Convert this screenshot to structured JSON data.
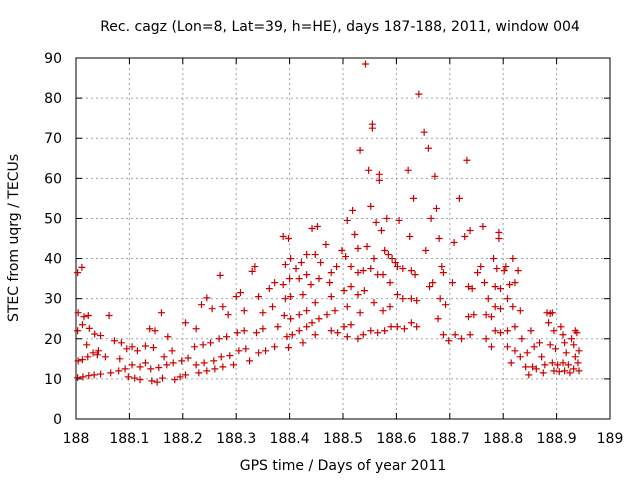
{
  "chart_data": {
    "type": "scatter",
    "title": "Rec. cagz (Lon=8, Lat=39, h=HE), days 187-188, 2011, window 004",
    "xlabel": "GPS time / Days of year 2011",
    "ylabel": "STEC from uqrg / TECUs",
    "xlim": [
      188,
      189
    ],
    "ylim": [
      0,
      90
    ],
    "x_ticks": [
      188,
      188.1,
      188.2,
      188.3,
      188.4,
      188.5,
      188.6,
      188.7,
      188.8,
      188.9,
      189
    ],
    "x_tick_labels": [
      "188",
      "188.1",
      "188.2",
      "188.3",
      "188.4",
      "188.5",
      "188.6",
      "188.7",
      "188.8",
      "188.9",
      "189"
    ],
    "y_ticks": [
      0,
      10,
      20,
      30,
      40,
      50,
      60,
      70,
      80,
      90
    ],
    "y_tick_labels": [
      "0",
      "10",
      "20",
      "30",
      "40",
      "50",
      "60",
      "70",
      "80",
      "90"
    ],
    "grid": true,
    "marker": "plus",
    "marker_color": "#cc0000",
    "points": [
      [
        188.003,
        36.5
      ],
      [
        188.011,
        37.8
      ],
      [
        188.004,
        26.5
      ],
      [
        188.015,
        25.5
      ],
      [
        188.023,
        25.8
      ],
      [
        188.003,
        22
      ],
      [
        188.012,
        23.5
      ],
      [
        188.025,
        22.6
      ],
      [
        188.035,
        21.2
      ],
      [
        188.046,
        20.8
      ],
      [
        188.004,
        14.5
      ],
      [
        188.012,
        14.8
      ],
      [
        188.022,
        15.5
      ],
      [
        188.032,
        16.5
      ],
      [
        188.042,
        17
      ],
      [
        188.003,
        10.3
      ],
      [
        188.013,
        10.5
      ],
      [
        188.024,
        10.8
      ],
      [
        188.034,
        11
      ],
      [
        188.046,
        11.2
      ],
      [
        188.02,
        18.5
      ],
      [
        188.04,
        16
      ],
      [
        188.055,
        15.5
      ],
      [
        188.062,
        25.8
      ],
      [
        188.072,
        19.5
      ],
      [
        188.085,
        19
      ],
      [
        188.065,
        11.5
      ],
      [
        188.08,
        12
      ],
      [
        188.092,
        12.5
      ],
      [
        188.082,
        15
      ],
      [
        188.095,
        17.5
      ],
      [
        188.105,
        18
      ],
      [
        188.098,
        10.5
      ],
      [
        188.11,
        10.2
      ],
      [
        188.12,
        9.8
      ],
      [
        188.105,
        13.5
      ],
      [
        188.12,
        13
      ],
      [
        188.13,
        14
      ],
      [
        188.115,
        17
      ],
      [
        188.13,
        18.2
      ],
      [
        188.142,
        9.5
      ],
      [
        188.152,
        9.2
      ],
      [
        188.162,
        10.2
      ],
      [
        188.14,
        12.5
      ],
      [
        188.155,
        12.8
      ],
      [
        188.17,
        13.5
      ],
      [
        188.138,
        22.5
      ],
      [
        188.148,
        22
      ],
      [
        188.16,
        26.5
      ],
      [
        188.172,
        20.5
      ],
      [
        188.145,
        17.8
      ],
      [
        188.165,
        15.5
      ],
      [
        188.18,
        17
      ],
      [
        188.185,
        9.8
      ],
      [
        188.195,
        10.5
      ],
      [
        188.205,
        11
      ],
      [
        188.182,
        14
      ],
      [
        188.198,
        14.5
      ],
      [
        188.21,
        15.2
      ],
      [
        188.205,
        24
      ],
      [
        188.225,
        22.5
      ],
      [
        188.235,
        28.5
      ],
      [
        188.245,
        30.2
      ],
      [
        188.255,
        27.5
      ],
      [
        188.222,
        18
      ],
      [
        188.238,
        18.5
      ],
      [
        188.252,
        19
      ],
      [
        188.23,
        11.5
      ],
      [
        188.245,
        12
      ],
      [
        188.26,
        12.5
      ],
      [
        188.225,
        13.5
      ],
      [
        188.24,
        14
      ],
      [
        188.258,
        14.5
      ],
      [
        188.27,
        35.8
      ],
      [
        188.275,
        28
      ],
      [
        188.285,
        26
      ],
      [
        188.268,
        20
      ],
      [
        188.282,
        20.5
      ],
      [
        188.272,
        15.5
      ],
      [
        188.288,
        15.8
      ],
      [
        188.275,
        13
      ],
      [
        188.295,
        13.5
      ],
      [
        188.3,
        30.5
      ],
      [
        188.308,
        31.5
      ],
      [
        188.315,
        27
      ],
      [
        188.302,
        21.5
      ],
      [
        188.315,
        22
      ],
      [
        188.305,
        17
      ],
      [
        188.318,
        17.5
      ],
      [
        188.325,
        14.5
      ],
      [
        188.33,
        36.8
      ],
      [
        188.335,
        38
      ],
      [
        188.342,
        30.5
      ],
      [
        188.35,
        26.5
      ],
      [
        188.338,
        21.5
      ],
      [
        188.35,
        22.5
      ],
      [
        188.342,
        16.5
      ],
      [
        188.355,
        17
      ],
      [
        188.362,
        32.5
      ],
      [
        188.372,
        34
      ],
      [
        188.368,
        28
      ],
      [
        188.378,
        23
      ],
      [
        188.372,
        18
      ],
      [
        188.388,
        45.5
      ],
      [
        188.398,
        45
      ],
      [
        188.392,
        38.5
      ],
      [
        188.402,
        40
      ],
      [
        188.388,
        33.5
      ],
      [
        188.4,
        35
      ],
      [
        188.392,
        30
      ],
      [
        188.402,
        30.5
      ],
      [
        188.39,
        25.8
      ],
      [
        188.402,
        25
      ],
      [
        188.395,
        20.5
      ],
      [
        188.405,
        21
      ],
      [
        188.398,
        17.8
      ],
      [
        188.412,
        37.5
      ],
      [
        188.422,
        39
      ],
      [
        188.432,
        41
      ],
      [
        188.418,
        35
      ],
      [
        188.432,
        36
      ],
      [
        188.425,
        31
      ],
      [
        188.418,
        26
      ],
      [
        188.432,
        27
      ],
      [
        188.418,
        22
      ],
      [
        188.432,
        23
      ],
      [
        188.425,
        19
      ],
      [
        188.442,
        47.5
      ],
      [
        188.452,
        48
      ],
      [
        188.448,
        41
      ],
      [
        188.458,
        39
      ],
      [
        188.44,
        33.5
      ],
      [
        188.455,
        35
      ],
      [
        188.448,
        29
      ],
      [
        188.442,
        24
      ],
      [
        188.455,
        25
      ],
      [
        188.448,
        21
      ],
      [
        188.468,
        43.5
      ],
      [
        188.478,
        36.5
      ],
      [
        188.475,
        34
      ],
      [
        188.488,
        38
      ],
      [
        188.478,
        30.5
      ],
      [
        188.47,
        26
      ],
      [
        188.485,
        27
      ],
      [
        188.478,
        22
      ],
      [
        188.49,
        21.5
      ],
      [
        188.498,
        42
      ],
      [
        188.508,
        49.5
      ],
      [
        188.505,
        40.5
      ],
      [
        188.515,
        38
      ],
      [
        188.502,
        32
      ],
      [
        188.515,
        33
      ],
      [
        188.508,
        28
      ],
      [
        188.502,
        23
      ],
      [
        188.515,
        23.5
      ],
      [
        188.508,
        20.5
      ],
      [
        188.518,
        52
      ],
      [
        188.522,
        46
      ],
      [
        188.528,
        42.5
      ],
      [
        188.532,
        67
      ],
      [
        188.528,
        36.5
      ],
      [
        188.538,
        37
      ],
      [
        188.528,
        31
      ],
      [
        188.54,
        32
      ],
      [
        188.532,
        26.5
      ],
      [
        188.528,
        20
      ],
      [
        188.538,
        21
      ],
      [
        188.542,
        88.5
      ],
      [
        188.548,
        62
      ],
      [
        188.545,
        43
      ],
      [
        188.555,
        73.5
      ],
      [
        188.555,
        72.5
      ],
      [
        188.552,
        53
      ],
      [
        188.562,
        49
      ],
      [
        188.558,
        40
      ],
      [
        188.552,
        37.5
      ],
      [
        188.565,
        36
      ],
      [
        188.558,
        29
      ],
      [
        188.552,
        22
      ],
      [
        188.565,
        21.5
      ],
      [
        188.568,
        61
      ],
      [
        188.568,
        59.5
      ],
      [
        188.572,
        47
      ],
      [
        188.578,
        42
      ],
      [
        188.582,
        50
      ],
      [
        188.585,
        41
      ],
      [
        188.575,
        36
      ],
      [
        188.588,
        34
      ],
      [
        188.575,
        27
      ],
      [
        188.588,
        28
      ],
      [
        188.578,
        22
      ],
      [
        188.59,
        23
      ],
      [
        188.592,
        40
      ],
      [
        188.598,
        39
      ],
      [
        188.605,
        49.5
      ],
      [
        188.602,
        38
      ],
      [
        188.612,
        37.5
      ],
      [
        188.602,
        31
      ],
      [
        188.612,
        30
      ],
      [
        188.602,
        23
      ],
      [
        188.615,
        22.5
      ],
      [
        188.622,
        62
      ],
      [
        188.625,
        45.5
      ],
      [
        188.632,
        55
      ],
      [
        188.628,
        37
      ],
      [
        188.635,
        36
      ],
      [
        188.628,
        30
      ],
      [
        188.638,
        29.5
      ],
      [
        188.628,
        24
      ],
      [
        188.638,
        23
      ],
      [
        188.642,
        81
      ],
      [
        188.652,
        71.5
      ],
      [
        188.655,
        42
      ],
      [
        188.66,
        67.5
      ],
      [
        188.665,
        50
      ],
      [
        188.662,
        33
      ],
      [
        188.668,
        34
      ],
      [
        188.672,
        60.5
      ],
      [
        188.675,
        52.5
      ],
      [
        188.68,
        45
      ],
      [
        188.685,
        38
      ],
      [
        188.688,
        36.5
      ],
      [
        188.682,
        30
      ],
      [
        188.692,
        28.5
      ],
      [
        188.678,
        25
      ],
      [
        188.688,
        21
      ],
      [
        188.698,
        19.5
      ],
      [
        188.705,
        34
      ],
      [
        188.708,
        44
      ],
      [
        188.71,
        21
      ],
      [
        188.718,
        55
      ],
      [
        188.722,
        20
      ],
      [
        188.728,
        45.5
      ],
      [
        188.732,
        64.5
      ],
      [
        188.738,
        47
      ],
      [
        188.735,
        33
      ],
      [
        188.742,
        32.5
      ],
      [
        188.735,
        25.5
      ],
      [
        188.745,
        26
      ],
      [
        188.738,
        21
      ],
      [
        188.752,
        36.5
      ],
      [
        188.758,
        38
      ],
      [
        188.762,
        48
      ],
      [
        188.765,
        34
      ],
      [
        188.772,
        30
      ],
      [
        188.768,
        26
      ],
      [
        188.778,
        25.5
      ],
      [
        188.768,
        20
      ],
      [
        188.778,
        18
      ],
      [
        188.782,
        40
      ],
      [
        188.788,
        37.5
      ],
      [
        188.792,
        46.5
      ],
      [
        188.792,
        45
      ],
      [
        188.785,
        33
      ],
      [
        188.795,
        32.5
      ],
      [
        188.785,
        28
      ],
      [
        188.795,
        27.5
      ],
      [
        188.785,
        22
      ],
      [
        188.795,
        21.5
      ],
      [
        188.802,
        37
      ],
      [
        188.805,
        38
      ],
      [
        188.812,
        33.5
      ],
      [
        188.818,
        40
      ],
      [
        188.822,
        34
      ],
      [
        188.808,
        30
      ],
      [
        188.818,
        28
      ],
      [
        188.808,
        22
      ],
      [
        188.822,
        23
      ],
      [
        188.808,
        18
      ],
      [
        188.822,
        17
      ],
      [
        188.815,
        14
      ],
      [
        188.828,
        37
      ],
      [
        188.832,
        27
      ],
      [
        188.835,
        20
      ],
      [
        188.832,
        15.5
      ],
      [
        188.842,
        13
      ],
      [
        188.852,
        22
      ],
      [
        188.858,
        18
      ],
      [
        188.845,
        16.5
      ],
      [
        188.855,
        13
      ],
      [
        188.848,
        11
      ],
      [
        188.862,
        12.5
      ],
      [
        188.868,
        19
      ],
      [
        188.872,
        15.5
      ],
      [
        188.878,
        13.5
      ],
      [
        188.875,
        11.5
      ],
      [
        188.882,
        26.5
      ],
      [
        188.888,
        26.3
      ],
      [
        188.885,
        24
      ],
      [
        188.892,
        26.5
      ],
      [
        188.895,
        22
      ],
      [
        188.888,
        18.5
      ],
      [
        188.898,
        17.5
      ],
      [
        188.892,
        14
      ],
      [
        188.902,
        13.5
      ],
      [
        188.895,
        12
      ],
      [
        188.905,
        11.8
      ],
      [
        188.908,
        23
      ],
      [
        188.912,
        21
      ],
      [
        188.915,
        19
      ],
      [
        188.918,
        16.5
      ],
      [
        188.912,
        14
      ],
      [
        188.922,
        13.5
      ],
      [
        188.915,
        12
      ],
      [
        188.925,
        11.5
      ],
      [
        188.928,
        20
      ],
      [
        188.935,
        22
      ],
      [
        188.938,
        21.5
      ],
      [
        188.932,
        18.5
      ],
      [
        188.942,
        17
      ],
      [
        188.935,
        15.5
      ],
      [
        188.94,
        14
      ],
      [
        188.932,
        12.5
      ],
      [
        188.942,
        12
      ]
    ]
  }
}
